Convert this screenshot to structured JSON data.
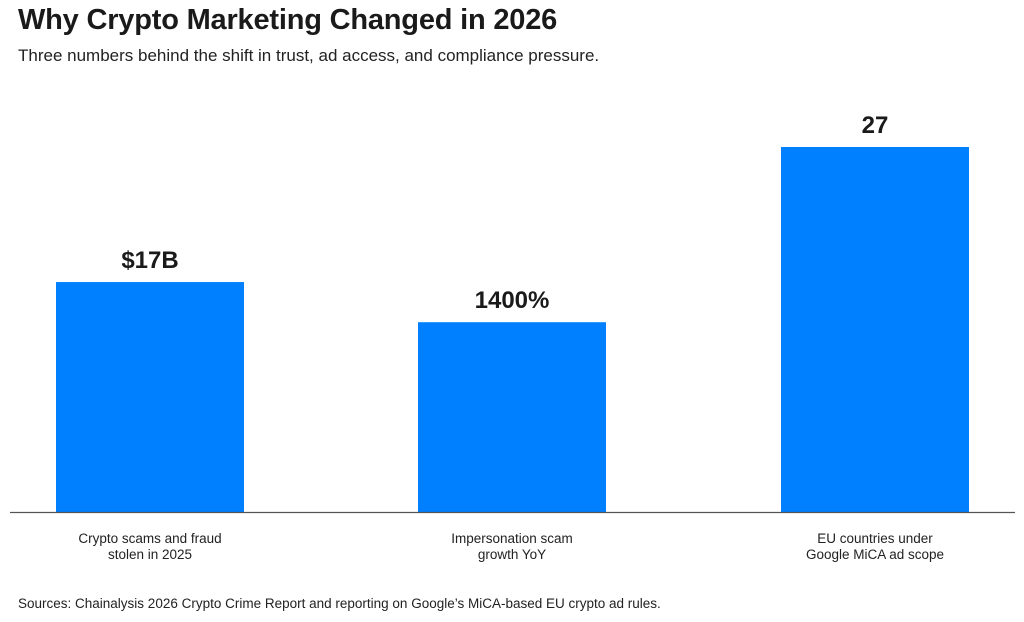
{
  "chart_data": {
    "type": "bar",
    "title": "Why Crypto Marketing Changed in 2026",
    "subtitle": "Three numbers behind the shift in trust, ad access, and compliance pressure.",
    "xlabel": "",
    "ylabel": "",
    "grid": false,
    "legend": "none",
    "categories": [
      [
        "Crypto scams and fraud",
        "stolen in 2025"
      ],
      [
        "Impersonation scam",
        "growth YoY"
      ],
      [
        "EU countries under",
        "Google MiCA ad scope"
      ]
    ],
    "value_labels": [
      "$17B",
      "1400%",
      "27"
    ],
    "display_heights_normalized": [
      0.63,
      0.52,
      1.0
    ],
    "bar_color": "#0080FF",
    "source": "Sources: Chainalysis 2026 Crypto Crime Report and reporting on Google’s MiCA-based EU crypto ad rules."
  }
}
